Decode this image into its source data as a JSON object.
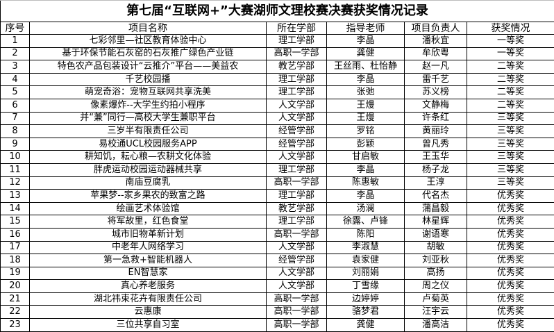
{
  "title": "第七届“互联网+”大赛湖师文理校赛决赛获奖情况记录",
  "headers": [
    "序号",
    "项目名称",
    "所在学部",
    "指导老师",
    "项目负责人",
    "获奖情况"
  ],
  "rows": [
    [
      "1",
      "七彩邻里—社区教育体验中心",
      "理工学部",
      "李晶",
      "潘秋宜",
      "一等奖"
    ],
    [
      "2",
      "基于环保节能石灰窑的石灰推广绿色产业链",
      "高职一学部",
      "龚健",
      "牟欣粤",
      "一等奖"
    ],
    [
      "3",
      "特色农产品包装设计“云推介”平台——美益农",
      "教艺学部",
      "王丝雨、杜怡静",
      "赵一凡",
      "二等奖"
    ],
    [
      "4",
      "千艺校园播",
      "理工学部",
      "李晶",
      "雷千艺",
      "二等奖"
    ],
    [
      "5",
      "萌宠奇浴：宠物互联网共享洗美",
      "理工学部",
      "张弛",
      "苏义榜",
      "二等奖"
    ],
    [
      "6",
      "像素爆炸--大学生约拍小程序",
      "人文学部",
      "王熳",
      "文静梅",
      "二等奖"
    ],
    [
      "7",
      "并“兼”同行—高校大学生兼职平台",
      "人文学部",
      "王熳",
      "许条红",
      "三等奖"
    ],
    [
      "8",
      "三岁半有限责任公司",
      "经管学部",
      "罗铭",
      "黄丽玲",
      "三等奖"
    ],
    [
      "9",
      "易校通UCL校园服务APP",
      "经管学部",
      "彭颖",
      "曾凡秀",
      "三等奖"
    ],
    [
      "10",
      "耕知饥，耘心粮—农耕文化体验",
      "人文学部",
      "甘启敏",
      "王玉华",
      "三等奖"
    ],
    [
      "11",
      "胖虎运动校园运动器械共享",
      "理工学部",
      "李晶",
      "杨子龙",
      "三等奖"
    ],
    [
      "12",
      "南庙豆腐乳",
      "高职一学部",
      "陈惠敏",
      "王淳",
      "三等奖"
    ],
    [
      "13",
      "苹果梦--家乡果农的致富之路",
      "理工学部",
      "李晶",
      "代名杰",
      "优秀奖"
    ],
    [
      "14",
      "绘画艺术体验馆",
      "教艺学部",
      "汤澜",
      "蒲昌毅",
      "优秀奖"
    ],
    [
      "15",
      "将军故里，红色食堂",
      "理工学部",
      "徐露、卢锋",
      "林星辉",
      "优秀奖"
    ],
    [
      "16",
      "城市旧物革新计划",
      "高职一学部",
      "陈阳",
      "谢语寒",
      "优秀奖"
    ],
    [
      "17",
      "中老年人网络学习",
      "人文学部",
      "李淑慧",
      "胡敏",
      "优秀奖"
    ],
    [
      "18",
      "第一急救+智能机器人",
      "经管学部",
      "袁家健",
      "刘亚秋",
      "优秀奖"
    ],
    [
      "19",
      "EN智慧家",
      "人文学部",
      "刘丽娟",
      "高扬",
      "优秀奖"
    ],
    [
      "20",
      "真心养老服务",
      "人文学部",
      "丁雪缘",
      "周之仪",
      "优秀奖"
    ],
    [
      "21",
      "湖北祎束花卉有限责任公司",
      "高职一学部",
      "边婷婷",
      "卢菊英",
      "优秀奖"
    ],
    [
      "22",
      "云惠康",
      "高职一学部",
      "骆梦君",
      "汪宇云",
      "优秀奖"
    ],
    [
      "23",
      "三位共享自习室",
      "高职一学部",
      "龚健",
      "潘高洁",
      "优秀奖"
    ]
  ]
}
